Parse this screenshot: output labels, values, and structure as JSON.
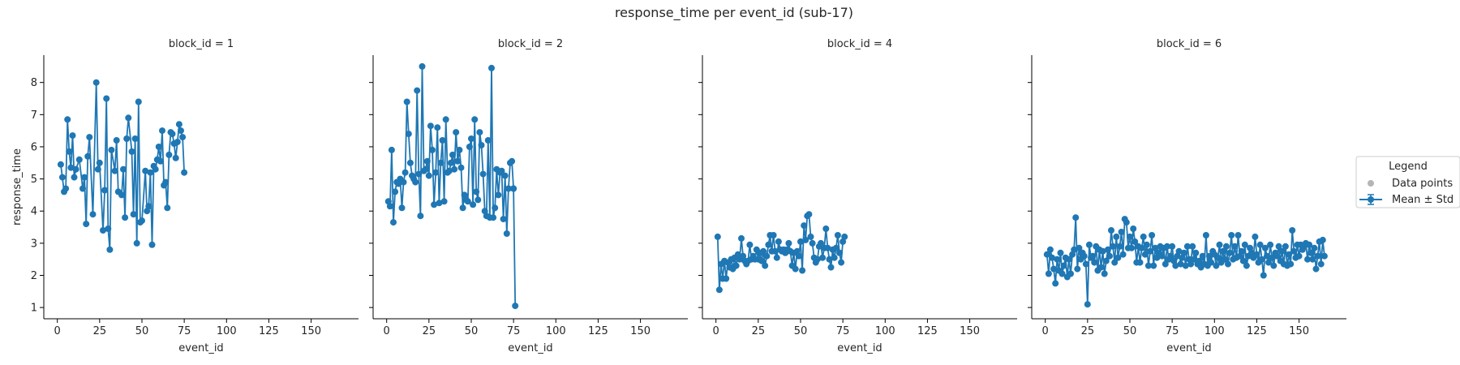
{
  "figure": {
    "title": "response_time per event_id (sub-17)"
  },
  "chart_data": [
    {
      "type": "line",
      "title": "block_id = 1",
      "xlabel": "event_id",
      "ylabel": "response_time",
      "xlim": [
        -8,
        178
      ],
      "ylim": [
        0.65,
        8.85
      ],
      "xticks": [
        0,
        25,
        50,
        75,
        100,
        125,
        150
      ],
      "yticks": [
        1,
        2,
        3,
        4,
        5,
        6,
        7,
        8
      ],
      "series": [
        {
          "color": "#1f77b4",
          "x": [
            2,
            3,
            4,
            5,
            6,
            7,
            8,
            9,
            10,
            11,
            13,
            15,
            16,
            17,
            18,
            19,
            21,
            23,
            24,
            25,
            27,
            28,
            29,
            30,
            31,
            32,
            34,
            35,
            36,
            38,
            39,
            40,
            41,
            42,
            44,
            45,
            46,
            47,
            48,
            49,
            50,
            52,
            53,
            54,
            55,
            56,
            57,
            58,
            59,
            60,
            61,
            62,
            63,
            64,
            65,
            66,
            67,
            68,
            69,
            70,
            71,
            72,
            73,
            74,
            75
          ],
          "y": [
            5.45,
            5.05,
            4.6,
            4.7,
            6.85,
            5.85,
            5.35,
            6.35,
            5.05,
            5.3,
            5.6,
            4.7,
            5.05,
            3.6,
            5.7,
            6.3,
            3.9,
            8.0,
            5.3,
            5.5,
            3.4,
            4.65,
            7.5,
            3.45,
            2.8,
            5.9,
            5.25,
            6.2,
            4.6,
            4.5,
            5.3,
            3.8,
            6.25,
            6.9,
            5.85,
            3.9,
            6.25,
            3.0,
            7.4,
            3.65,
            3.7,
            5.25,
            4.0,
            4.15,
            5.2,
            2.95,
            5.4,
            5.3,
            5.6,
            6.0,
            5.55,
            6.5,
            4.8,
            4.9,
            4.1,
            5.75,
            6.45,
            6.4,
            6.1,
            5.65,
            6.15,
            6.7,
            6.5,
            6.3,
            5.2
          ]
        }
      ]
    },
    {
      "type": "line",
      "title": "block_id = 2",
      "xlabel": "event_id",
      "xlim": [
        -8,
        178
      ],
      "ylim": [
        0.65,
        8.85
      ],
      "xticks": [
        0,
        25,
        50,
        75,
        100,
        125,
        150
      ],
      "series": [
        {
          "color": "#1f77b4",
          "x": [
            1,
            2,
            3,
            4,
            5,
            6,
            7,
            8,
            9,
            10,
            11,
            12,
            13,
            14,
            15,
            16,
            17,
            18,
            19,
            20,
            21,
            22,
            23,
            24,
            25,
            26,
            27,
            28,
            29,
            30,
            31,
            32,
            33,
            34,
            35,
            36,
            37,
            38,
            39,
            40,
            41,
            42,
            43,
            44,
            45,
            46,
            47,
            48,
            49,
            50,
            51,
            52,
            53,
            54,
            55,
            56,
            57,
            58,
            59,
            60,
            61,
            62,
            63,
            64,
            65,
            66,
            67,
            68,
            69,
            70,
            71,
            72,
            73,
            74,
            75
          ],
          "y": [
            4.3,
            4.15,
            5.9,
            3.65,
            4.6,
            4.9,
            4.85,
            5.0,
            4.1,
            4.9,
            5.2,
            7.4,
            6.4,
            5.5,
            5.1,
            5.0,
            4.9,
            7.75,
            5.15,
            3.85,
            8.5,
            5.25,
            5.3,
            5.55,
            5.1,
            6.65,
            5.9,
            4.2,
            5.2,
            6.6,
            4.25,
            5.5,
            6.2,
            4.3,
            6.85,
            5.2,
            5.25,
            5.5,
            5.75,
            5.3,
            6.45,
            5.55,
            5.9,
            5.35,
            4.1,
            4.5,
            4.35,
            4.3,
            6.0,
            6.25,
            4.2,
            6.85,
            4.6,
            4.35,
            6.45,
            6.05,
            5.15,
            4.0,
            3.85,
            6.2,
            3.8,
            8.45,
            3.8,
            4.1,
            5.3,
            4.5,
            5.2,
            5.25,
            3.75,
            5.1,
            3.3,
            4.7,
            5.5,
            5.55,
            4.7
          ]
        },
        {
          "color": "#1f77b4",
          "x": [
            75,
            76
          ],
          "y": [
            4.7,
            1.05
          ]
        }
      ]
    },
    {
      "type": "line",
      "title": "block_id = 4",
      "xlabel": "event_id",
      "xlim": [
        -8,
        178
      ],
      "ylim": [
        0.65,
        8.85
      ],
      "xticks": [
        0,
        25,
        50,
        75,
        100,
        125,
        150
      ],
      "series": [
        {
          "color": "#1f77b4",
          "x": [
            1,
            2,
            3,
            4,
            5,
            6,
            7,
            8,
            9,
            10,
            11,
            12,
            13,
            14,
            15,
            16,
            17,
            18,
            19,
            20,
            21,
            22,
            23,
            24,
            25,
            26,
            27,
            28,
            29,
            30,
            31,
            32,
            33,
            34,
            35,
            36,
            37,
            38,
            39,
            40,
            41,
            42,
            43,
            44,
            45,
            46,
            47,
            48,
            49,
            50,
            51,
            52,
            53,
            54,
            55,
            56,
            57,
            58,
            59,
            60,
            61,
            62,
            63,
            64,
            65,
            66,
            67,
            68,
            69,
            70,
            71,
            72,
            73,
            74,
            75,
            76
          ],
          "y": [
            3.2,
            1.55,
            2.35,
            1.9,
            2.45,
            1.9,
            2.4,
            2.25,
            2.5,
            2.2,
            2.55,
            2.3,
            2.65,
            2.5,
            3.15,
            2.6,
            2.45,
            2.35,
            2.45,
            2.95,
            2.5,
            2.6,
            2.5,
            2.8,
            2.5,
            2.7,
            2.45,
            2.75,
            2.3,
            2.6,
            2.95,
            3.25,
            2.75,
            3.25,
            2.75,
            2.55,
            3.05,
            2.8,
            2.75,
            2.8,
            2.7,
            2.8,
            3.0,
            2.75,
            2.3,
            2.7,
            2.2,
            2.75,
            2.6,
            3.05,
            2.15,
            3.55,
            3.1,
            3.85,
            3.9,
            3.2,
            3.0,
            2.55,
            2.4,
            2.5,
            2.9,
            3.0,
            2.55,
            2.85,
            3.45,
            2.85,
            2.5,
            2.25,
            2.8,
            2.55,
            2.85,
            3.25,
            2.7,
            2.4,
            3.05,
            3.2
          ]
        }
      ]
    },
    {
      "type": "line",
      "title": "block_id = 6",
      "xlabel": "event_id",
      "xlim": [
        -8,
        178
      ],
      "ylim": [
        0.65,
        8.85
      ],
      "xticks": [
        0,
        25,
        50,
        75,
        100,
        125,
        150
      ],
      "series": [
        {
          "color": "#1f77b4",
          "x": [
            1,
            2,
            3,
            4,
            5,
            6,
            7,
            8,
            9,
            10,
            11,
            12,
            13,
            14,
            15,
            16,
            17,
            18,
            19,
            20,
            21,
            22,
            23,
            24,
            25,
            26,
            27,
            28,
            29,
            30,
            31,
            32,
            33,
            34,
            35,
            36,
            37,
            38,
            39,
            40,
            41,
            42,
            43,
            44,
            45,
            46,
            47,
            48,
            49,
            50,
            51,
            52,
            53,
            54,
            55,
            56,
            57,
            58,
            59,
            60,
            61,
            62,
            63,
            64,
            65,
            66,
            67,
            68,
            69,
            70,
            71,
            72,
            73,
            74,
            75,
            76,
            77,
            78,
            79,
            80,
            81,
            82,
            83,
            84,
            85,
            86,
            87,
            88,
            89,
            90,
            91,
            92,
            93,
            94,
            95,
            96,
            97,
            98,
            99,
            100,
            101,
            102,
            103,
            104,
            105,
            106,
            107,
            108,
            109,
            110,
            111,
            112,
            113,
            114,
            115,
            116,
            117,
            118,
            119,
            120,
            121,
            122,
            123,
            124,
            125,
            126,
            127,
            128,
            129,
            130,
            131,
            132,
            133,
            134,
            135,
            136,
            137,
            138,
            139,
            140,
            141,
            142,
            143,
            144,
            145,
            146,
            147,
            148,
            149,
            150,
            151,
            152,
            153,
            154,
            155,
            156,
            157,
            158,
            159,
            160,
            161,
            162,
            163,
            164,
            165
          ],
          "y": [
            2.65,
            2.05,
            2.8,
            2.55,
            2.2,
            1.75,
            2.5,
            2.15,
            2.7,
            2.05,
            2.3,
            2.55,
            1.95,
            2.5,
            2.05,
            2.65,
            2.8,
            3.8,
            2.2,
            2.85,
            2.5,
            2.7,
            2.6,
            2.35,
            1.1,
            2.95,
            2.55,
            2.6,
            2.4,
            2.9,
            2.15,
            2.8,
            2.25,
            2.75,
            2.05,
            2.45,
            2.8,
            2.6,
            3.4,
            2.9,
            2.4,
            3.2,
            2.55,
            2.9,
            3.35,
            2.65,
            3.75,
            3.65,
            2.85,
            3.2,
            2.85,
            3.45,
            3.05,
            2.4,
            2.9,
            2.4,
            2.85,
            3.2,
            2.65,
            2.95,
            2.3,
            2.75,
            3.25,
            2.3,
            2.85,
            2.55,
            2.7,
            2.9,
            2.6,
            2.85,
            2.35,
            2.9,
            2.5,
            2.6,
            2.9,
            2.45,
            2.3,
            2.6,
            2.75,
            2.35,
            2.55,
            2.7,
            2.3,
            2.9,
            2.5,
            2.35,
            2.9,
            2.5,
            2.7,
            2.35,
            2.45,
            2.25,
            2.6,
            2.35,
            3.25,
            2.3,
            2.6,
            2.4,
            2.75,
            2.65,
            2.3,
            2.55,
            2.95,
            2.4,
            2.75,
            2.5,
            2.9,
            2.35,
            2.7,
            3.25,
            2.5,
            2.9,
            2.55,
            3.25,
            2.6,
            2.75,
            2.45,
            2.95,
            2.3,
            2.6,
            2.85,
            2.7,
            2.55,
            3.2,
            2.65,
            2.4,
            2.95,
            2.5,
            2.0,
            2.85,
            2.6,
            2.4,
            2.95,
            2.55,
            2.3,
            2.7,
            2.6,
            2.9,
            2.45,
            2.75,
            2.35,
            2.9,
            2.3,
            2.65,
            2.35,
            3.4,
            2.75,
            2.55,
            2.95,
            2.6,
            2.95,
            2.8,
            2.9,
            3.0,
            2.5,
            2.95,
            2.7,
            2.5,
            2.85,
            2.2,
            2.6,
            3.05,
            2.35,
            3.1,
            2.6
          ]
        }
      ]
    }
  ],
  "legend": {
    "title": "Legend",
    "items": [
      {
        "label": "Data points",
        "color": "#b5b5b5"
      },
      {
        "label": "Mean ± Std",
        "color": "#1f77b4"
      }
    ]
  }
}
